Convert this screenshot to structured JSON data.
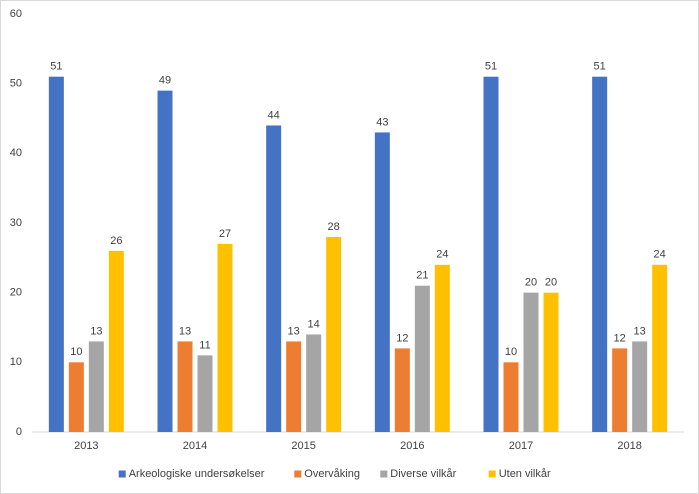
{
  "chart_data": {
    "type": "bar",
    "categories": [
      "2013",
      "2014",
      "2015",
      "2016",
      "2017",
      "2018"
    ],
    "series": [
      {
        "name": "Arkeologiske undersøkelser",
        "color": "#4472c4",
        "values": [
          51,
          49,
          44,
          43,
          51,
          51
        ]
      },
      {
        "name": "Overvåking",
        "color": "#ed7d31",
        "values": [
          10,
          13,
          13,
          12,
          10,
          12
        ]
      },
      {
        "name": "Diverse vilkår",
        "color": "#a5a5a5",
        "values": [
          13,
          11,
          14,
          21,
          20,
          13
        ]
      },
      {
        "name": "Uten vilkår",
        "color": "#ffc000",
        "values": [
          26,
          27,
          28,
          24,
          20,
          24
        ]
      }
    ],
    "ylim": [
      0,
      60
    ],
    "yticks": [
      0,
      10,
      20,
      30,
      40,
      50,
      60
    ],
    "grid": false,
    "legend": "bottom"
  }
}
